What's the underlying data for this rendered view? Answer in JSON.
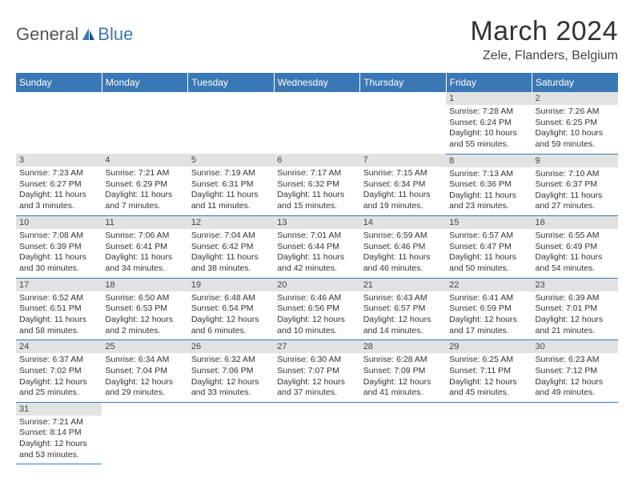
{
  "logo": {
    "general": "General",
    "blue": "Blue"
  },
  "title": "March 2024",
  "location": "Zele, Flanders, Belgium",
  "day_headers": [
    "Sunday",
    "Monday",
    "Tuesday",
    "Wednesday",
    "Thursday",
    "Friday",
    "Saturday"
  ],
  "header_bg": "#3a78b5",
  "header_fg": "#ffffff",
  "daynum_bg": "#e2e2e2",
  "row_border": "#3a78b5",
  "weeks": [
    [
      null,
      null,
      null,
      null,
      null,
      {
        "n": "1",
        "sr": "7:28 AM",
        "ss": "6:24 PM",
        "dl": "10 hours and 55 minutes."
      },
      {
        "n": "2",
        "sr": "7:26 AM",
        "ss": "6:25 PM",
        "dl": "10 hours and 59 minutes."
      }
    ],
    [
      {
        "n": "3",
        "sr": "7:23 AM",
        "ss": "6:27 PM",
        "dl": "11 hours and 3 minutes."
      },
      {
        "n": "4",
        "sr": "7:21 AM",
        "ss": "6:29 PM",
        "dl": "11 hours and 7 minutes."
      },
      {
        "n": "5",
        "sr": "7:19 AM",
        "ss": "6:31 PM",
        "dl": "11 hours and 11 minutes."
      },
      {
        "n": "6",
        "sr": "7:17 AM",
        "ss": "6:32 PM",
        "dl": "11 hours and 15 minutes."
      },
      {
        "n": "7",
        "sr": "7:15 AM",
        "ss": "6:34 PM",
        "dl": "11 hours and 19 minutes."
      },
      {
        "n": "8",
        "sr": "7:13 AM",
        "ss": "6:36 PM",
        "dl": "11 hours and 23 minutes."
      },
      {
        "n": "9",
        "sr": "7:10 AM",
        "ss": "6:37 PM",
        "dl": "11 hours and 27 minutes."
      }
    ],
    [
      {
        "n": "10",
        "sr": "7:08 AM",
        "ss": "6:39 PM",
        "dl": "11 hours and 30 minutes."
      },
      {
        "n": "11",
        "sr": "7:06 AM",
        "ss": "6:41 PM",
        "dl": "11 hours and 34 minutes."
      },
      {
        "n": "12",
        "sr": "7:04 AM",
        "ss": "6:42 PM",
        "dl": "11 hours and 38 minutes."
      },
      {
        "n": "13",
        "sr": "7:01 AM",
        "ss": "6:44 PM",
        "dl": "11 hours and 42 minutes."
      },
      {
        "n": "14",
        "sr": "6:59 AM",
        "ss": "6:46 PM",
        "dl": "11 hours and 46 minutes."
      },
      {
        "n": "15",
        "sr": "6:57 AM",
        "ss": "6:47 PM",
        "dl": "11 hours and 50 minutes."
      },
      {
        "n": "16",
        "sr": "6:55 AM",
        "ss": "6:49 PM",
        "dl": "11 hours and 54 minutes."
      }
    ],
    [
      {
        "n": "17",
        "sr": "6:52 AM",
        "ss": "6:51 PM",
        "dl": "11 hours and 58 minutes."
      },
      {
        "n": "18",
        "sr": "6:50 AM",
        "ss": "6:53 PM",
        "dl": "12 hours and 2 minutes."
      },
      {
        "n": "19",
        "sr": "6:48 AM",
        "ss": "6:54 PM",
        "dl": "12 hours and 6 minutes."
      },
      {
        "n": "20",
        "sr": "6:46 AM",
        "ss": "6:56 PM",
        "dl": "12 hours and 10 minutes."
      },
      {
        "n": "21",
        "sr": "6:43 AM",
        "ss": "6:57 PM",
        "dl": "12 hours and 14 minutes."
      },
      {
        "n": "22",
        "sr": "6:41 AM",
        "ss": "6:59 PM",
        "dl": "12 hours and 17 minutes."
      },
      {
        "n": "23",
        "sr": "6:39 AM",
        "ss": "7:01 PM",
        "dl": "12 hours and 21 minutes."
      }
    ],
    [
      {
        "n": "24",
        "sr": "6:37 AM",
        "ss": "7:02 PM",
        "dl": "12 hours and 25 minutes."
      },
      {
        "n": "25",
        "sr": "6:34 AM",
        "ss": "7:04 PM",
        "dl": "12 hours and 29 minutes."
      },
      {
        "n": "26",
        "sr": "6:32 AM",
        "ss": "7:06 PM",
        "dl": "12 hours and 33 minutes."
      },
      {
        "n": "27",
        "sr": "6:30 AM",
        "ss": "7:07 PM",
        "dl": "12 hours and 37 minutes."
      },
      {
        "n": "28",
        "sr": "6:28 AM",
        "ss": "7:09 PM",
        "dl": "12 hours and 41 minutes."
      },
      {
        "n": "29",
        "sr": "6:25 AM",
        "ss": "7:11 PM",
        "dl": "12 hours and 45 minutes."
      },
      {
        "n": "30",
        "sr": "6:23 AM",
        "ss": "7:12 PM",
        "dl": "12 hours and 49 minutes."
      }
    ],
    [
      {
        "n": "31",
        "sr": "7:21 AM",
        "ss": "8:14 PM",
        "dl": "12 hours and 53 minutes."
      },
      null,
      null,
      null,
      null,
      null,
      null
    ]
  ],
  "labels": {
    "sunrise": "Sunrise:",
    "sunset": "Sunset:",
    "daylight": "Daylight:"
  }
}
